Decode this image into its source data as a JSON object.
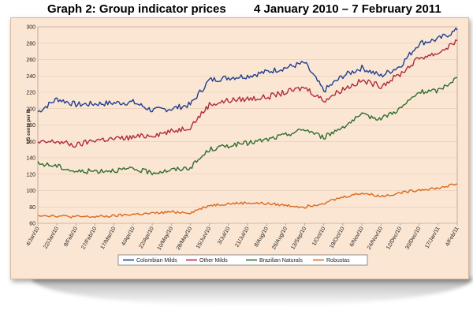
{
  "title_left": "Graph 2: Group indicator prices",
  "title_right": "4 January 2010 – 7 February 2011",
  "chart_data": {
    "type": "line",
    "title": "Graph 2: Group indicator prices",
    "subtitle": "4 January 2010 – 7 February 2011",
    "ylabel": "US cents per lb",
    "xlabel": "",
    "ylim": [
      60,
      300
    ],
    "yticks": [
      60,
      80,
      100,
      120,
      140,
      160,
      180,
      200,
      220,
      240,
      260,
      280,
      300
    ],
    "grid": true,
    "legend": "bottom",
    "x_tick_labels": [
      "4/Jan/10",
      "22/Jan/10",
      "9/Feb/10",
      "27/Feb/10",
      "17/Mar/10",
      "4/Apr/10",
      "22/Apr/10",
      "10/May/10",
      "28/May/10",
      "15/Jun/10",
      "3/Jul/10",
      "21/Jul/10",
      "8/Aug/10",
      "26/Aug/10",
      "13/Sep/10",
      "1/Oct/10",
      "19/Oct/10",
      "6/Nov/10",
      "24/Nov/10",
      "12/Dec/10",
      "30/Dec/10",
      "17/Jan/11",
      "4/Feb/11"
    ],
    "x": [
      "4/Jan/10",
      "22/Jan/10",
      "9/Feb/10",
      "27/Feb/10",
      "17/Mar/10",
      "4/Apr/10",
      "22/Apr/10",
      "10/May/10",
      "28/May/10",
      "15/Jun/10",
      "3/Jul/10",
      "21/Jul/10",
      "8/Aug/10",
      "26/Aug/10",
      "13/Sep/10",
      "1/Oct/10",
      "19/Oct/10",
      "6/Nov/10",
      "24/Nov/10",
      "12/Dec/10",
      "30/Dec/10",
      "17/Jan/11",
      "4/Feb/11"
    ],
    "series": [
      {
        "name": "Colombian Milds",
        "color": "#1f3f8f",
        "values": [
          196,
          212,
          205,
          206,
          207,
          208,
          198,
          200,
          205,
          235,
          238,
          240,
          245,
          250,
          256,
          222,
          240,
          250,
          240,
          252,
          280,
          285,
          296
        ]
      },
      {
        "name": "Other Milds",
        "color": "#b02b3a",
        "values": [
          158,
          160,
          155,
          162,
          163,
          165,
          168,
          172,
          178,
          205,
          210,
          212,
          214,
          220,
          226,
          210,
          224,
          234,
          228,
          242,
          262,
          268,
          283
        ]
      },
      {
        "name": "Brazilian Naturals",
        "color": "#2d6e2d",
        "values": [
          133,
          130,
          123,
          124,
          125,
          126,
          122,
          125,
          128,
          150,
          155,
          158,
          162,
          168,
          175,
          165,
          178,
          192,
          188,
          200,
          220,
          222,
          238
        ]
      },
      {
        "name": "Robustas",
        "color": "#d96a1e",
        "values": [
          70,
          69,
          68,
          68,
          69,
          71,
          72,
          74,
          73,
          82,
          84,
          85,
          84,
          82,
          80,
          85,
          92,
          97,
          93,
          97,
          101,
          103,
          108
        ]
      }
    ]
  }
}
